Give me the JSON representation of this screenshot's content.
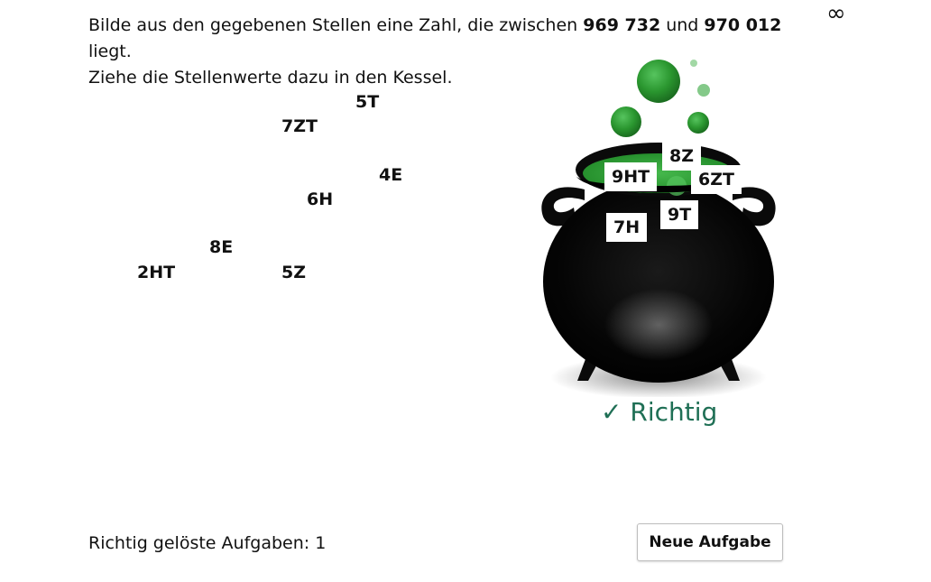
{
  "task": {
    "line1_prefix": "Bilde aus den gegebenen Stellen eine Zahl, die zwischen ",
    "lower_bound": "969 732",
    "line1_middle": " und ",
    "upper_bound": "970 012",
    "line1_suffix": " liegt.",
    "line2": "Ziehe die Stellenwerte dazu in den Kessel."
  },
  "infinity_symbol": "∞",
  "free_tiles": [
    "5T",
    "7ZT",
    "4E",
    "6H",
    "8E",
    "2HT",
    "5Z"
  ],
  "kessel_tiles": [
    "9HT",
    "8Z",
    "6ZT",
    "9T",
    "7H"
  ],
  "feedback": {
    "check_mark": "✓",
    "text": "Richtig"
  },
  "score": {
    "label": "Richtig gelöste Aufgaben: ",
    "value": "1"
  },
  "button": {
    "label": "Neue Aufgabe"
  },
  "colors": {
    "potion_green": "#2f9a3a",
    "bubble_green": "#22882b",
    "cauldron_black": "#0a0a0a",
    "feedback_green": "#1f6f55"
  }
}
